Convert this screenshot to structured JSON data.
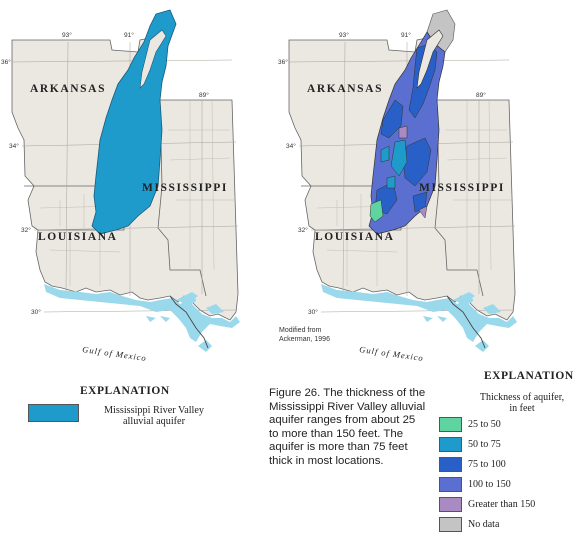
{
  "left_map": {
    "states": {
      "arkansas": "ARKANSAS",
      "mississippi": "MISSISSIPPI",
      "louisiana": "LOUISIANA"
    },
    "graticule": {
      "lon_93": "93°",
      "lon_91": "91°",
      "lon_89": "89°",
      "lat_36": "36°",
      "lat_34": "34°",
      "lat_32": "32°",
      "lat_30": "30°"
    },
    "gulf_label": "Gulf of Mexico",
    "aquifer_color": "#1f9bcb"
  },
  "right_map": {
    "states": {
      "arkansas": "ARKANSAS",
      "mississippi": "MISSISSIPPI",
      "louisiana": "LOUISIANA"
    },
    "graticule": {
      "lon_93": "93°",
      "lon_91": "91°",
      "lon_89": "89°",
      "lat_36": "36°",
      "lat_34": "34°",
      "lat_32": "32°",
      "lat_30": "30°"
    },
    "gulf_label": "Gulf of Mexico",
    "source_note": [
      "Modified from",
      "Ackerman, 1996"
    ]
  },
  "left_explanation": {
    "title": "EXPLANATION",
    "item_label": [
      "Mississippi River Valley",
      "alluvial aquifer"
    ],
    "swatch_color": "#1f9bcb"
  },
  "caption": "Figure 26.  The thickness of the Mississippi River Valley alluvial aquifer ranges from about 25 to more than 150 feet. The aquifer is more than 75 feet thick in most locations.",
  "right_explanation": {
    "title": "EXPLANATION",
    "heading": [
      "Thickness of aquifer,",
      "in feet"
    ],
    "items": [
      {
        "label": "25 to 50",
        "color": "#5fd3a0"
      },
      {
        "label": "50 to 75",
        "color": "#1f9bcb"
      },
      {
        "label": "75 to 100",
        "color": "#2860c8"
      },
      {
        "label": "100 to 150",
        "color": "#5b6fd0"
      },
      {
        "label": "Greater than 150",
        "color": "#a98ac2"
      },
      {
        "label": "No data",
        "color": "#c4c4c4"
      }
    ]
  },
  "map_colors": {
    "land": "#ebe7e1",
    "water": "#9ad9ec",
    "border": "#555555"
  }
}
